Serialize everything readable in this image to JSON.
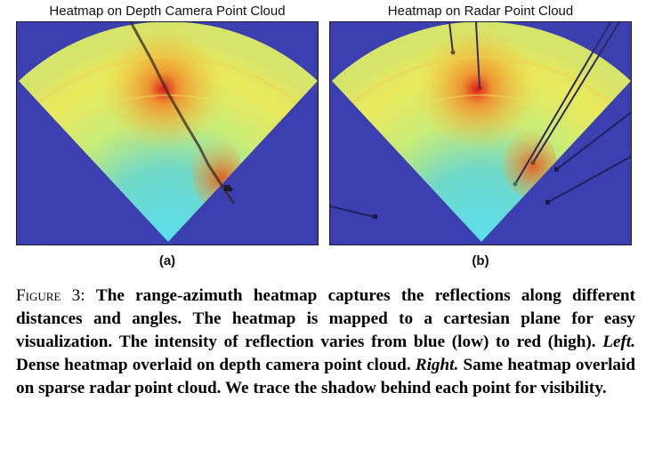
{
  "figure": {
    "panels": [
      {
        "title": "Heatmap on Depth Camera Point Cloud",
        "label": "(a)"
      },
      {
        "title": "Heatmap on Radar Point Cloud",
        "label": "(b)"
      }
    ],
    "caption": {
      "figure_word": "Figure",
      "figure_number": "3:",
      "sentence_1": "The range-azimuth heatmap captures the reflections along different distances and angles.",
      "sentence_2": "The heatmap is mapped to a cartesian plane for easy visualization.",
      "sentence_3": "The intensity of reflection varies from blue (low) to red (high).",
      "left_label": "Left.",
      "left_text": "Dense heatmap overlaid on depth camera point cloud.",
      "right_label": "Right.",
      "right_text": "Same heatmap overlaid on sparse radar point cloud. We trace the shadow behind each point for visibility."
    },
    "colors": {
      "background_low": "#3b3fb0",
      "cool": "#35c8e0",
      "mid": "#e9ec5a",
      "hot": "#f39a2a",
      "peak": "#d81f1f"
    }
  }
}
